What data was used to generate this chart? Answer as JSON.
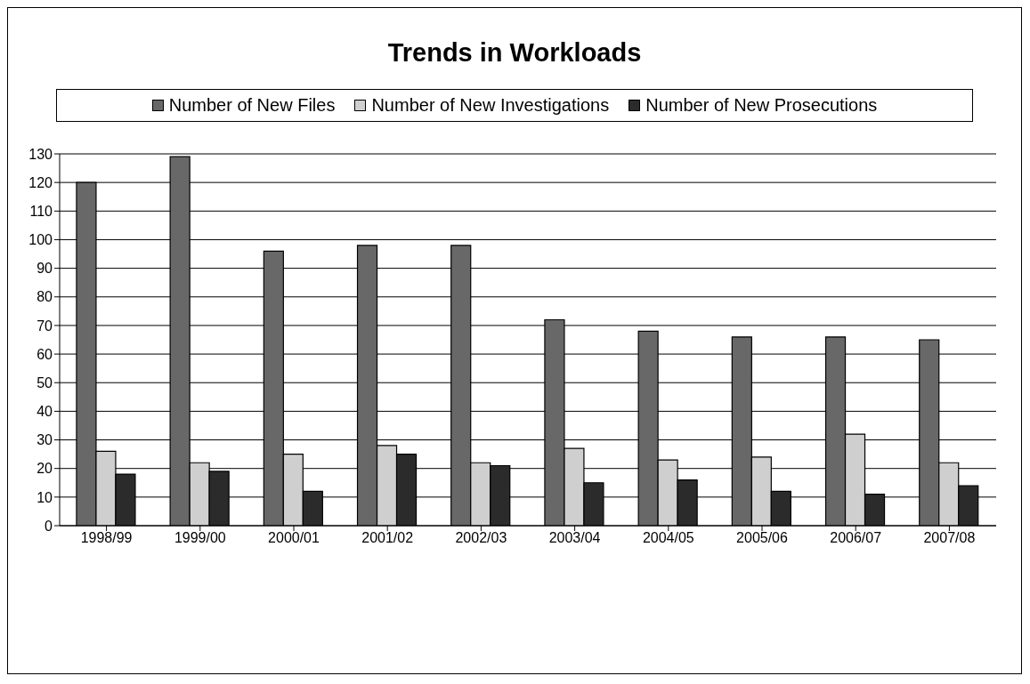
{
  "chart_data": {
    "type": "bar",
    "title": "Trends in Workloads",
    "categories": [
      "1998/99",
      "1999/00",
      "2000/01",
      "2001/02",
      "2002/03",
      "2003/04",
      "2004/05",
      "2005/06",
      "2006/07",
      "2007/08"
    ],
    "series": [
      {
        "name": "Number of New Files",
        "color": "#686868",
        "values": [
          120,
          129,
          96,
          98,
          98,
          72,
          68,
          66,
          66,
          65
        ]
      },
      {
        "name": "Number of New Investigations",
        "color": "#cfcfcf",
        "values": [
          26,
          22,
          25,
          28,
          22,
          27,
          23,
          24,
          32,
          22
        ]
      },
      {
        "name": "Number of New Prosecutions",
        "color": "#2b2b2b",
        "values": [
          18,
          19,
          12,
          25,
          21,
          15,
          16,
          12,
          11,
          14
        ]
      }
    ],
    "ylim": [
      0,
      130
    ],
    "yticks": [
      0,
      10,
      20,
      30,
      40,
      50,
      60,
      70,
      80,
      90,
      100,
      110,
      120,
      130
    ],
    "grid": "y",
    "legend": "top"
  }
}
